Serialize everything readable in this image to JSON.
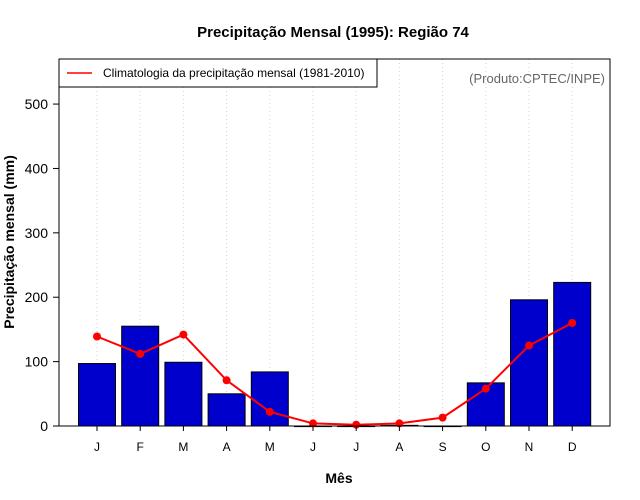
{
  "chart_data": {
    "type": "bar",
    "title": "Precipitação Mensal (1995): Região 74",
    "xlabel": "Mês",
    "ylabel": "Precipitação mensal (mm)",
    "categories": [
      "J",
      "F",
      "M",
      "A",
      "M",
      "J",
      "J",
      "A",
      "S",
      "O",
      "N",
      "D"
    ],
    "ylim": [
      0,
      570
    ],
    "yticks": [
      0,
      100,
      200,
      300,
      400,
      500
    ],
    "grid": "vertical-dotted",
    "legend_position": "top-left",
    "series": [
      {
        "name": "Precipitação mensal (1995)",
        "type": "bar",
        "values": [
          97,
          155,
          99,
          50,
          84,
          0,
          0,
          1,
          0,
          67,
          196,
          223
        ]
      },
      {
        "name": "Climatologia da precipitação mensal (1981-2010)",
        "type": "line",
        "values": [
          139,
          112,
          142,
          71,
          22,
          4,
          2,
          4,
          13,
          58,
          125,
          160
        ]
      }
    ],
    "legend": [
      "Climatologia da precipitação mensal (1981-2010)"
    ],
    "credit": "(Produto:CPTEC/INPE)"
  },
  "colors": {
    "bar_fill": "#0000cc",
    "bar_stroke": "#000000",
    "line": "#ff0000",
    "grid": "#d3d3d3",
    "credit": "#666666"
  }
}
